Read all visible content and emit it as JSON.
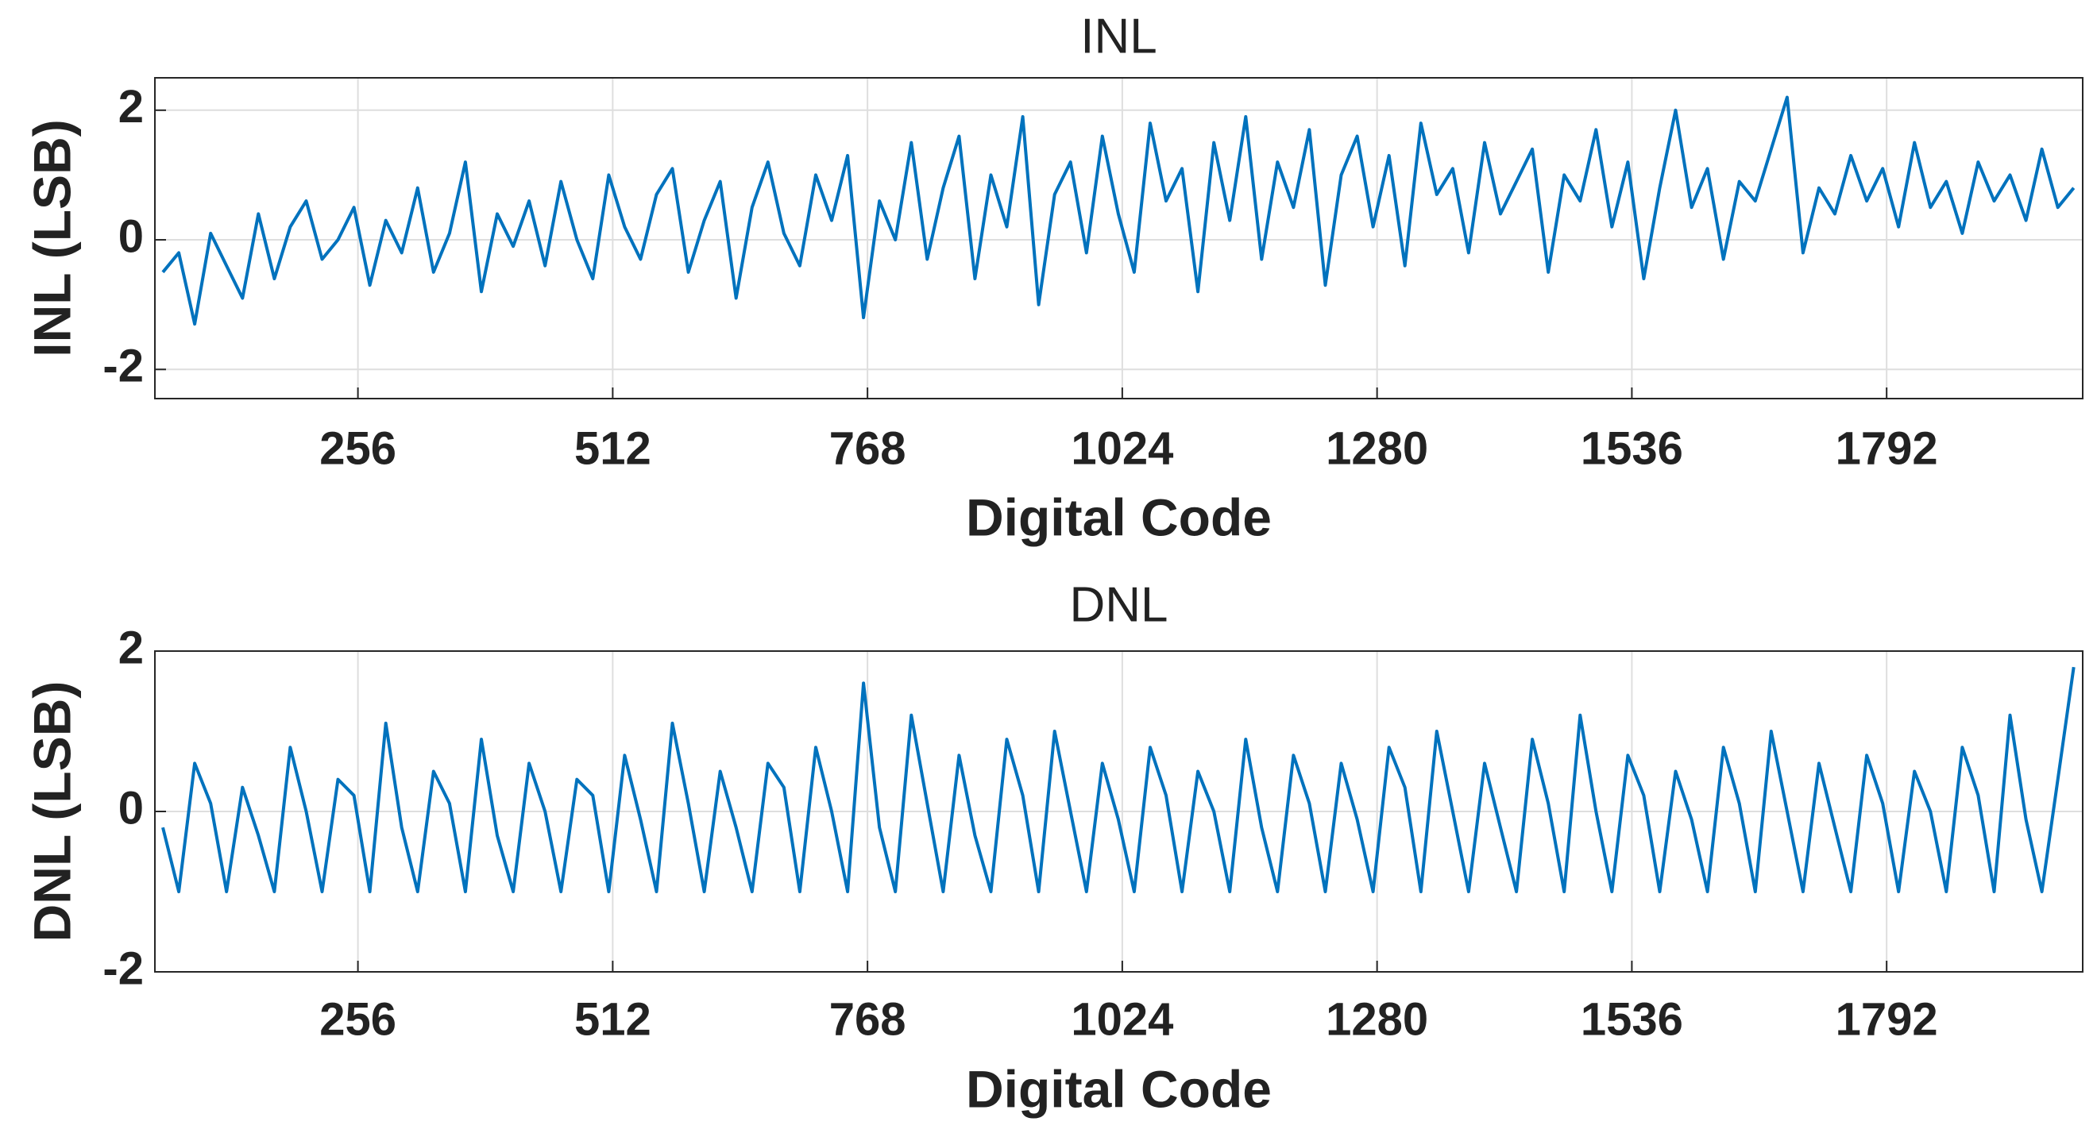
{
  "chart_data": [
    {
      "type": "line",
      "title": "INL",
      "xlabel": "Digital Code",
      "ylabel": "INL (LSB)",
      "color": "#0072BD",
      "grid": true,
      "xlim": [
        52,
        1989
      ],
      "ylim": [
        -2.45,
        2.5
      ],
      "xticks": [
        256,
        512,
        768,
        1024,
        1280,
        1536,
        1792
      ],
      "yticks": [
        -2,
        0,
        2
      ],
      "x": [
        60,
        76,
        92,
        108,
        124,
        140,
        156,
        172,
        188,
        204,
        220,
        236,
        252,
        268,
        284,
        300,
        316,
        332,
        348,
        364,
        380,
        396,
        412,
        428,
        444,
        460,
        476,
        492,
        508,
        524,
        540,
        556,
        572,
        588,
        604,
        620,
        636,
        652,
        668,
        684,
        700,
        716,
        732,
        748,
        764,
        780,
        796,
        812,
        828,
        844,
        860,
        876,
        892,
        908,
        924,
        940,
        956,
        972,
        988,
        1004,
        1020,
        1036,
        1052,
        1068,
        1084,
        1100,
        1116,
        1132,
        1148,
        1164,
        1180,
        1196,
        1212,
        1228,
        1244,
        1260,
        1276,
        1292,
        1308,
        1324,
        1340,
        1356,
        1372,
        1388,
        1404,
        1420,
        1436,
        1452,
        1468,
        1484,
        1500,
        1516,
        1532,
        1548,
        1564,
        1580,
        1596,
        1612,
        1628,
        1644,
        1660,
        1676,
        1692,
        1708,
        1724,
        1740,
        1756,
        1772,
        1788,
        1804,
        1820,
        1836,
        1852,
        1868,
        1884,
        1900,
        1916,
        1932,
        1948,
        1964,
        1980
      ],
      "values": [
        -0.5,
        -0.2,
        -1.3,
        0.1,
        -0.4,
        -0.9,
        0.4,
        -0.6,
        0.2,
        0.6,
        -0.3,
        0.0,
        0.5,
        -0.7,
        0.3,
        -0.2,
        0.8,
        -0.5,
        0.1,
        1.2,
        -0.8,
        0.4,
        -0.1,
        0.6,
        -0.4,
        0.9,
        0.0,
        -0.6,
        1.0,
        0.2,
        -0.3,
        0.7,
        1.1,
        -0.5,
        0.3,
        0.9,
        -0.9,
        0.5,
        1.2,
        0.1,
        -0.4,
        1.0,
        0.3,
        1.3,
        -1.2,
        0.6,
        0.0,
        1.5,
        -0.3,
        0.8,
        1.6,
        -0.6,
        1.0,
        0.2,
        1.9,
        -1.0,
        0.7,
        1.2,
        -0.2,
        1.6,
        0.4,
        -0.5,
        1.8,
        0.6,
        1.1,
        -0.8,
        1.5,
        0.3,
        1.9,
        -0.3,
        1.2,
        0.5,
        1.7,
        -0.7,
        1.0,
        1.6,
        0.2,
        1.3,
        -0.4,
        1.8,
        0.7,
        1.1,
        -0.2,
        1.5,
        0.4,
        0.9,
        1.4,
        -0.5,
        1.0,
        0.6,
        1.7,
        0.2,
        1.2,
        -0.6,
        0.8,
        2.0,
        0.5,
        1.1,
        -0.3,
        0.9,
        0.6,
        1.4,
        2.2,
        -0.2,
        0.8,
        0.4,
        1.3,
        0.6,
        1.1,
        0.2,
        1.5,
        0.5,
        0.9,
        0.1,
        1.2,
        0.6,
        1.0,
        0.3,
        1.4,
        0.5,
        0.8
      ]
    },
    {
      "type": "line",
      "title": "DNL",
      "xlabel": "Digital Code",
      "ylabel": "DNL (LSB)",
      "color": "#0072BD",
      "grid": true,
      "xlim": [
        52,
        1989
      ],
      "ylim": [
        -2,
        2
      ],
      "xticks": [
        256,
        512,
        768,
        1024,
        1280,
        1536,
        1792
      ],
      "yticks": [
        -2,
        0,
        2
      ],
      "x": [
        60,
        76,
        92,
        108,
        124,
        140,
        156,
        172,
        188,
        204,
        220,
        236,
        252,
        268,
        284,
        300,
        316,
        332,
        348,
        364,
        380,
        396,
        412,
        428,
        444,
        460,
        476,
        492,
        508,
        524,
        540,
        556,
        572,
        588,
        604,
        620,
        636,
        652,
        668,
        684,
        700,
        716,
        732,
        748,
        764,
        780,
        796,
        812,
        828,
        844,
        860,
        876,
        892,
        908,
        924,
        940,
        956,
        972,
        988,
        1004,
        1020,
        1036,
        1052,
        1068,
        1084,
        1100,
        1116,
        1132,
        1148,
        1164,
        1180,
        1196,
        1212,
        1228,
        1244,
        1260,
        1276,
        1292,
        1308,
        1324,
        1340,
        1356,
        1372,
        1388,
        1404,
        1420,
        1436,
        1452,
        1468,
        1484,
        1500,
        1516,
        1532,
        1548,
        1564,
        1580,
        1596,
        1612,
        1628,
        1644,
        1660,
        1676,
        1692,
        1708,
        1724,
        1740,
        1756,
        1772,
        1788,
        1804,
        1820,
        1836,
        1852,
        1868,
        1884,
        1900,
        1916,
        1932,
        1948,
        1964,
        1980
      ],
      "values": [
        -0.2,
        -1.0,
        0.6,
        0.1,
        -1.0,
        0.3,
        -0.3,
        -1.0,
        0.8,
        0.0,
        -1.0,
        0.4,
        0.2,
        -1.0,
        1.1,
        -0.2,
        -1.0,
        0.5,
        0.1,
        -1.0,
        0.9,
        -0.3,
        -1.0,
        0.6,
        0.0,
        -1.0,
        0.4,
        0.2,
        -1.0,
        0.7,
        -0.1,
        -1.0,
        1.1,
        0.1,
        -1.0,
        0.5,
        -0.2,
        -1.0,
        0.6,
        0.3,
        -1.0,
        0.8,
        0.0,
        -1.0,
        1.6,
        -0.2,
        -1.0,
        1.2,
        0.1,
        -1.0,
        0.7,
        -0.3,
        -1.0,
        0.9,
        0.2,
        -1.0,
        1.0,
        0.0,
        -1.0,
        0.6,
        -0.1,
        -1.0,
        0.8,
        0.2,
        -1.0,
        0.5,
        0.0,
        -1.0,
        0.9,
        -0.2,
        -1.0,
        0.7,
        0.1,
        -1.0,
        0.6,
        -0.1,
        -1.0,
        0.8,
        0.3,
        -1.0,
        1.0,
        0.0,
        -1.0,
        0.6,
        -0.2,
        -1.0,
        0.9,
        0.1,
        -1.0,
        1.2,
        0.0,
        -1.0,
        0.7,
        0.2,
        -1.0,
        0.5,
        -0.1,
        -1.0,
        0.8,
        0.1,
        -1.0,
        1.0,
        0.0,
        -1.0,
        0.6,
        -0.2,
        -1.0,
        0.7,
        0.1,
        -1.0,
        0.5,
        0.0,
        -1.0,
        0.8,
        0.2,
        -1.0,
        1.2,
        -0.1,
        -1.0,
        0.4,
        1.8
      ]
    }
  ]
}
